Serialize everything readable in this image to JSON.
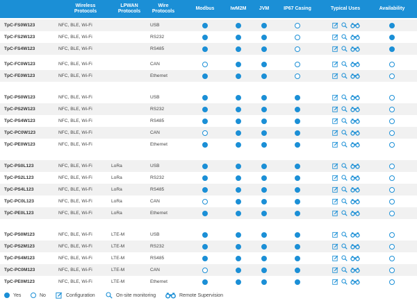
{
  "colors": {
    "header_bg": "#1b8fd6",
    "accent": "#1b8fd6",
    "row_alt": "#f1f1f1"
  },
  "header": {
    "wireless": "Wireless\nProtocols",
    "lpwan": "LPWAN\nProtocols",
    "wire": "Wire\nProtocols",
    "modbus": "Modbus",
    "iwm2m": "IwM2M",
    "jvm": "JVM",
    "ip67": "IP67 Casing",
    "uses": "Typical Uses",
    "availability": "Availability"
  },
  "rows": [
    {
      "name": "TpC-FS0W123",
      "wireless": "NFC, BLE, Wi-Fi",
      "lpwan": "",
      "wire": "USB",
      "modbus": true,
      "iwm2m": true,
      "jvm": true,
      "ip67": false,
      "avail": true
    },
    {
      "name": "TpC-FS2W123",
      "wireless": "NFC, BLE, Wi-Fi",
      "lpwan": "",
      "wire": "RS232",
      "modbus": true,
      "iwm2m": true,
      "jvm": true,
      "ip67": false,
      "avail": true
    },
    {
      "name": "TpC-FS4W123",
      "wireless": "NFC, BLE, Wi-Fi",
      "lpwan": "",
      "wire": "RS485",
      "modbus": true,
      "iwm2m": true,
      "jvm": true,
      "ip67": false,
      "avail": true
    },
    {
      "name": "TpC-FC0W123",
      "wireless": "NFC, BLE, Wi-Fi",
      "lpwan": "",
      "wire": "CAN",
      "modbus": false,
      "iwm2m": true,
      "jvm": true,
      "ip67": false,
      "avail": false
    },
    {
      "name": "TpC-FE0W123",
      "wireless": "NFC, BLE, Wi-Fi",
      "lpwan": "",
      "wire": "Ethernet",
      "modbus": true,
      "iwm2m": true,
      "jvm": true,
      "ip67": false,
      "avail": false
    },
    {
      "name": "TpC-PS0W123",
      "wireless": "NFC, BLE, Wi-Fi",
      "lpwan": "",
      "wire": "USB",
      "modbus": true,
      "iwm2m": true,
      "jvm": true,
      "ip67": true,
      "avail": false
    },
    {
      "name": "TpC-PS2W123",
      "wireless": "NFC, BLE, Wi-Fi",
      "lpwan": "",
      "wire": "RS232",
      "modbus": true,
      "iwm2m": true,
      "jvm": true,
      "ip67": true,
      "avail": false
    },
    {
      "name": "TpC-PS4W123",
      "wireless": "NFC, BLE, Wi-Fi",
      "lpwan": "",
      "wire": "RS485",
      "modbus": true,
      "iwm2m": true,
      "jvm": true,
      "ip67": true,
      "avail": false
    },
    {
      "name": "TpC-PC0W123",
      "wireless": "NFC, BLE, Wi-Fi",
      "lpwan": "",
      "wire": "CAN",
      "modbus": false,
      "iwm2m": true,
      "jvm": true,
      "ip67": true,
      "avail": false
    },
    {
      "name": "TpC-PE0W123",
      "wireless": "NFC, BLE, Wi-Fi",
      "lpwan": "",
      "wire": "Ethernet",
      "modbus": true,
      "iwm2m": true,
      "jvm": true,
      "ip67": true,
      "avail": false
    },
    {
      "name": "TpC-PS0L123",
      "wireless": "NFC, BLE, Wi-Fi",
      "lpwan": "LoRa",
      "wire": "USB",
      "modbus": true,
      "iwm2m": true,
      "jvm": true,
      "ip67": true,
      "avail": false
    },
    {
      "name": "TpC-PS2L123",
      "wireless": "NFC, BLE, Wi-Fi",
      "lpwan": "LoRa",
      "wire": "RS232",
      "modbus": true,
      "iwm2m": true,
      "jvm": true,
      "ip67": true,
      "avail": false
    },
    {
      "name": "TpC-PS4L123",
      "wireless": "NFC, BLE, Wi-Fi",
      "lpwan": "LoRa",
      "wire": "RS485",
      "modbus": true,
      "iwm2m": true,
      "jvm": true,
      "ip67": true,
      "avail": false
    },
    {
      "name": "TpC-PC0L123",
      "wireless": "NFC, BLE, Wi-Fi",
      "lpwan": "LoRa",
      "wire": "CAN",
      "modbus": false,
      "iwm2m": true,
      "jvm": true,
      "ip67": true,
      "avail": false
    },
    {
      "name": "TpC-PE0L123",
      "wireless": "NFC, BLE, Wi-Fi",
      "lpwan": "LoRa",
      "wire": "Ethernet",
      "modbus": true,
      "iwm2m": true,
      "jvm": true,
      "ip67": true,
      "avail": false
    },
    {
      "name": "TpC-PS0M123",
      "wireless": "NFC, BLE, Wi-Fi",
      "lpwan": "LTE-M",
      "wire": "USB",
      "modbus": true,
      "iwm2m": true,
      "jvm": true,
      "ip67": true,
      "avail": false
    },
    {
      "name": "TpC-PS2M123",
      "wireless": "NFC, BLE, Wi-Fi",
      "lpwan": "LTE-M",
      "wire": "RS232",
      "modbus": true,
      "iwm2m": true,
      "jvm": true,
      "ip67": true,
      "avail": false
    },
    {
      "name": "TpC-PS4M123",
      "wireless": "NFC, BLE, Wi-Fi",
      "lpwan": "LTE-M",
      "wire": "RS485",
      "modbus": true,
      "iwm2m": true,
      "jvm": true,
      "ip67": true,
      "avail": false
    },
    {
      "name": "TpC-PC0M123",
      "wireless": "NFC, BLE, Wi-Fi",
      "lpwan": "LTE-M",
      "wire": "CAN",
      "modbus": false,
      "iwm2m": true,
      "jvm": true,
      "ip67": true,
      "avail": false
    },
    {
      "name": "TpC-PE0M123",
      "wireless": "NFC, BLE, Wi-Fi",
      "lpwan": "LTE-M",
      "wire": "Ethernet",
      "modbus": true,
      "iwm2m": true,
      "jvm": true,
      "ip67": true,
      "avail": false
    }
  ],
  "typical_use_icons": [
    "edit-icon",
    "search-icon",
    "binoculars-icon"
  ],
  "legend": {
    "yes": "Yes",
    "no": "No",
    "configuration": "Configuration",
    "monitoring": "On-site monitoring",
    "supervision": "Remote Supervision"
  }
}
